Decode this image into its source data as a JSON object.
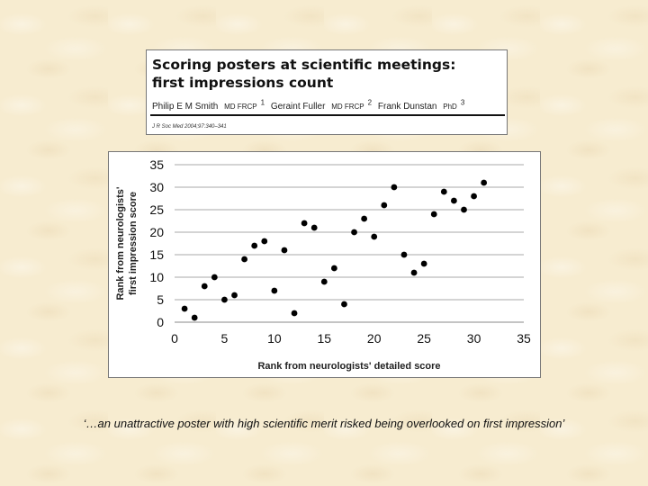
{
  "header": {
    "title_line1": "Scoring posters at scientific meetings:",
    "title_line2": "first impressions count",
    "authors": [
      {
        "name": "Philip E M Smith",
        "credentials": "MD FRCP",
        "mark": "1"
      },
      {
        "name": "Geraint Fuller",
        "credentials": "MD FRCP",
        "mark": "2"
      },
      {
        "name": "Frank Dunstan",
        "credentials": "PhD",
        "mark": "3"
      }
    ],
    "citation": "J R Soc Med 2004;97:340–341"
  },
  "chart_data": {
    "type": "scatter",
    "xlabel": "Rank from neurologists' detailed score",
    "ylabel_line1": "Rank from neurologists'",
    "ylabel_line2": "first impression score",
    "xlim": [
      0,
      35
    ],
    "ylim": [
      0,
      35
    ],
    "xticks": [
      0,
      5,
      10,
      15,
      20,
      25,
      30,
      35
    ],
    "yticks": [
      0,
      5,
      10,
      15,
      20,
      25,
      30,
      35
    ],
    "grid": "horizontal",
    "marker_color": "#000000",
    "points": [
      {
        "x": 1,
        "y": 3
      },
      {
        "x": 2,
        "y": 1
      },
      {
        "x": 3,
        "y": 8
      },
      {
        "x": 4,
        "y": 10
      },
      {
        "x": 5,
        "y": 5
      },
      {
        "x": 6,
        "y": 6
      },
      {
        "x": 7,
        "y": 14
      },
      {
        "x": 8,
        "y": 17
      },
      {
        "x": 9,
        "y": 18
      },
      {
        "x": 10,
        "y": 7
      },
      {
        "x": 11,
        "y": 16
      },
      {
        "x": 12,
        "y": 2
      },
      {
        "x": 13,
        "y": 22
      },
      {
        "x": 14,
        "y": 21
      },
      {
        "x": 15,
        "y": 9
      },
      {
        "x": 16,
        "y": 12
      },
      {
        "x": 17,
        "y": 4
      },
      {
        "x": 18,
        "y": 20
      },
      {
        "x": 19,
        "y": 23
      },
      {
        "x": 20,
        "y": 19
      },
      {
        "x": 21,
        "y": 26
      },
      {
        "x": 22,
        "y": 30
      },
      {
        "x": 23,
        "y": 15
      },
      {
        "x": 24,
        "y": 11
      },
      {
        "x": 25,
        "y": 13
      },
      {
        "x": 26,
        "y": 24
      },
      {
        "x": 27,
        "y": 29
      },
      {
        "x": 28,
        "y": 27
      },
      {
        "x": 29,
        "y": 25
      },
      {
        "x": 30,
        "y": 28
      },
      {
        "x": 31,
        "y": 31
      }
    ]
  },
  "quote": "‘…an unattractive poster with high scientific merit risked being overlooked on first impression’"
}
